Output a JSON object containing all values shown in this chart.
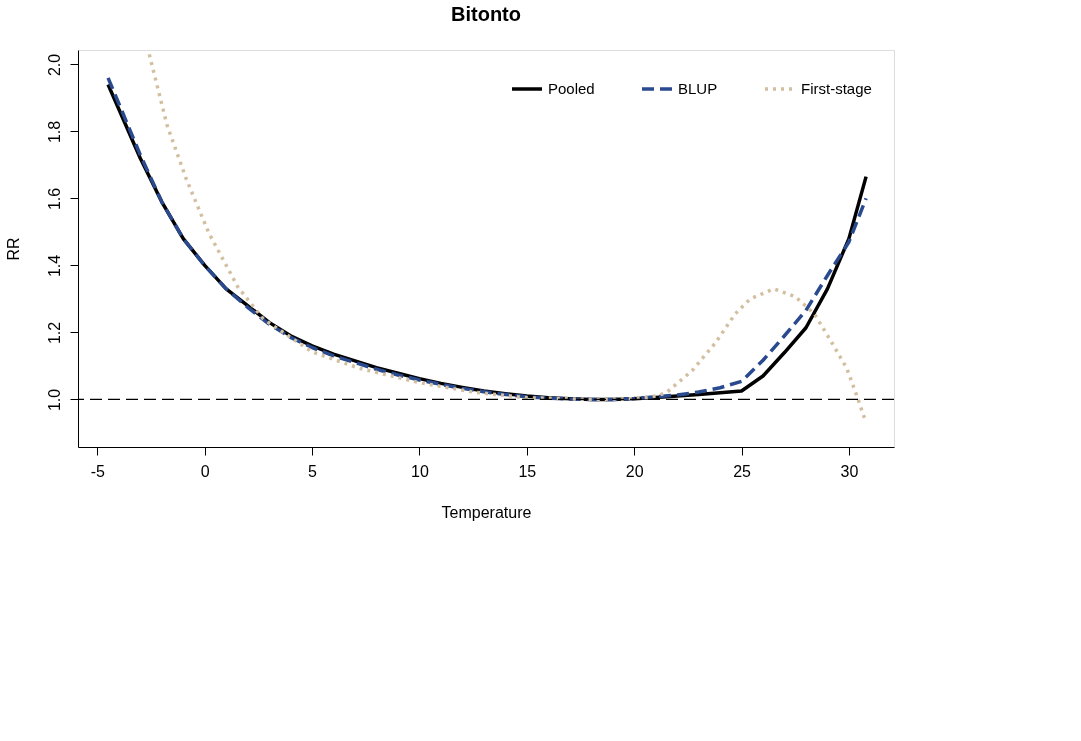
{
  "chart_data": {
    "type": "line",
    "title": "Bitonto",
    "xlabel": "Temperature",
    "ylabel": "RR",
    "xlim": [
      -5.9,
      32.1
    ],
    "ylim": [
      0.858,
      2.043
    ],
    "xticks": [
      -5,
      0,
      5,
      10,
      15,
      20,
      25,
      30
    ],
    "yticks": [
      {
        "value": 1.0,
        "label": "1.0"
      },
      {
        "value": 1.2,
        "label": "1.2"
      },
      {
        "value": 1.4,
        "label": "1.4"
      },
      {
        "value": 1.6,
        "label": "1.6"
      },
      {
        "value": 1.8,
        "label": "1.8"
      },
      {
        "value": 2.0,
        "label": "2.0"
      }
    ],
    "grid": false,
    "legend": "top right",
    "marker": "none",
    "ref_lines": [
      {
        "axis": "y",
        "value": 1.0,
        "color": "#000000",
        "line_style": "dashed"
      }
    ],
    "series": [
      {
        "name": "Pooled",
        "color": "#000000",
        "line_style": "solid",
        "x": [
          -4.5,
          -3,
          -2,
          -1,
          0,
          1,
          2,
          3,
          4,
          5,
          6,
          7,
          8,
          9,
          10,
          11,
          12,
          13,
          14,
          15,
          16,
          17,
          18,
          19,
          20,
          21,
          22,
          23,
          24,
          25,
          26,
          27,
          28,
          29,
          30,
          30.8
        ],
        "values": [
          1.94,
          1.72,
          1.59,
          1.48,
          1.4,
          1.33,
          1.28,
          1.23,
          1.19,
          1.16,
          1.135,
          1.115,
          1.095,
          1.078,
          1.062,
          1.048,
          1.036,
          1.025,
          1.017,
          1.01,
          1.005,
          1.002,
          1.0,
          1.0,
          1.002,
          1.006,
          1.01,
          1.015,
          1.02,
          1.025,
          1.07,
          1.14,
          1.214,
          1.33,
          1.48,
          1.665
        ]
      },
      {
        "name": "BLUP",
        "color": "#2a4a8f",
        "line_style": "dashed",
        "x": [
          -4.5,
          -3,
          -2,
          -1,
          0,
          1,
          2,
          3,
          4,
          5,
          6,
          7,
          8,
          9,
          10,
          11,
          12,
          13,
          14,
          15,
          16,
          17,
          18,
          19,
          20,
          21,
          22,
          23,
          24,
          25,
          26,
          27,
          28,
          29,
          30,
          30.8
        ],
        "values": [
          1.96,
          1.73,
          1.59,
          1.48,
          1.4,
          1.33,
          1.275,
          1.225,
          1.185,
          1.155,
          1.13,
          1.11,
          1.09,
          1.073,
          1.058,
          1.045,
          1.033,
          1.023,
          1.015,
          1.008,
          1.004,
          1.001,
          1.0,
          1.0,
          1.003,
          1.008,
          1.013,
          1.022,
          1.035,
          1.054,
          1.117,
          1.19,
          1.266,
          1.37,
          1.47,
          1.6
        ]
      },
      {
        "name": "First-stage",
        "color": "#d2bfa0",
        "line_style": "dotted",
        "x": [
          -2.58,
          -1.76,
          -0.86,
          0.19,
          1.54,
          2.73,
          5,
          7.2,
          10,
          12.5,
          15,
          18,
          20,
          21,
          21.5,
          22.7,
          23.8,
          24.7,
          25.4,
          26.5,
          27.5,
          28.4,
          29.2,
          29.9,
          30.4,
          30.75
        ],
        "values": [
          2.03,
          1.82,
          1.658,
          1.497,
          1.336,
          1.24,
          1.142,
          1.093,
          1.05,
          1.022,
          1.005,
          1.0,
          1.002,
          1.01,
          1.02,
          1.086,
          1.17,
          1.255,
          1.3,
          1.33,
          1.307,
          1.255,
          1.17,
          1.093,
          1.005,
          0.94
        ]
      }
    ]
  }
}
